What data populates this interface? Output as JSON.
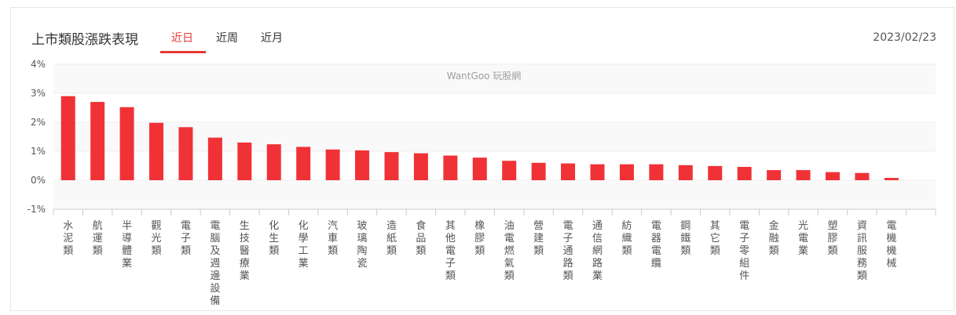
{
  "header": {
    "title": "上市類股漲跌表現",
    "tabs": [
      {
        "label": "近日",
        "active": true
      },
      {
        "label": "近周",
        "active": false
      },
      {
        "label": "近月",
        "active": false
      }
    ],
    "date": "2023/02/23"
  },
  "watermark": "WantGoo 玩股網",
  "colors": {
    "bar": "#f03237",
    "accent": "#e53935"
  },
  "chart_data": {
    "type": "bar",
    "title": "",
    "xlabel": "",
    "ylabel": "",
    "ylim": [
      -1,
      4
    ],
    "yticks": [
      {
        "value": 4,
        "label": "4%"
      },
      {
        "value": 3,
        "label": "3%"
      },
      {
        "value": 2,
        "label": "2%"
      },
      {
        "value": 1,
        "label": "1%"
      },
      {
        "value": 0,
        "label": "0%"
      },
      {
        "value": -1,
        "label": "-1%"
      }
    ],
    "categories": [
      "水泥類",
      "航運類",
      "半導體業",
      "觀光類",
      "電子類",
      "電腦及週邊設備",
      "生技醫療業",
      "化生類",
      "化學工業",
      "汽車類",
      "玻璃陶瓷",
      "造紙類",
      "食品類",
      "其他電子類",
      "橡膠類",
      "油電燃氣類",
      "營建類",
      "電子通路類",
      "通信網路業",
      "紡織類",
      "電器電纜",
      "鋼鐵類",
      "其它類",
      "電子零組件",
      "金融類",
      "光電業",
      "塑膠類",
      "資訊服務類",
      "電機機械",
      ""
    ],
    "values": [
      2.9,
      2.7,
      2.52,
      1.98,
      1.83,
      1.47,
      1.3,
      1.24,
      1.15,
      1.06,
      1.03,
      0.97,
      0.93,
      0.85,
      0.78,
      0.67,
      0.6,
      0.58,
      0.55,
      0.55,
      0.55,
      0.52,
      0.49,
      0.46,
      0.35,
      0.35,
      0.28,
      0.25,
      0.08,
      null
    ],
    "grid": true,
    "legend": "none"
  }
}
